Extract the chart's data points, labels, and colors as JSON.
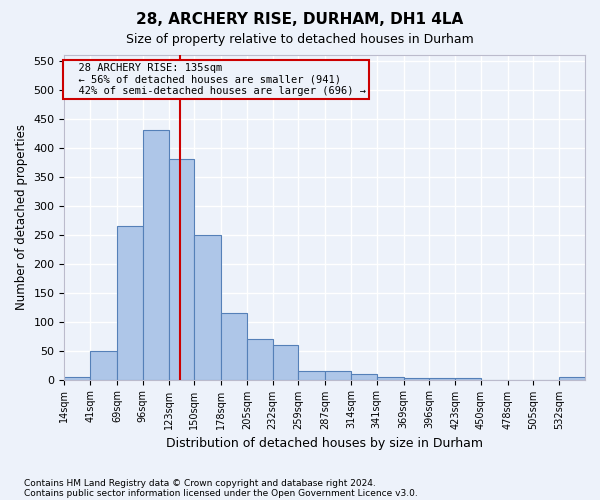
{
  "title_line1": "28, ARCHERY RISE, DURHAM, DH1 4LA",
  "title_line2": "Size of property relative to detached houses in Durham",
  "xlabel": "Distribution of detached houses by size in Durham",
  "ylabel": "Number of detached properties",
  "footnote1": "Contains HM Land Registry data © Crown copyright and database right 2024.",
  "footnote2": "Contains public sector information licensed under the Open Government Licence v3.0.",
  "annotation_line1": "28 ARCHERY RISE: 135sqm",
  "annotation_line2": "← 56% of detached houses are smaller (941)",
  "annotation_line3": "42% of semi-detached houses are larger (696) →",
  "bar_edges": [
    14,
    41,
    69,
    96,
    123,
    150,
    178,
    205,
    232,
    259,
    287,
    314,
    341,
    369,
    396,
    423,
    450,
    478,
    505,
    532,
    559
  ],
  "bar_heights": [
    5,
    50,
    265,
    430,
    380,
    250,
    115,
    70,
    60,
    15,
    15,
    10,
    5,
    3,
    3,
    3,
    0,
    0,
    0,
    5
  ],
  "bar_color": "#aec6e8",
  "bar_edge_color": "#5580b8",
  "vline_color": "#cc0000",
  "vline_x": 135,
  "annotation_box_color": "#cc0000",
  "ylim": [
    0,
    560
  ],
  "yticks": [
    0,
    50,
    100,
    150,
    200,
    250,
    300,
    350,
    400,
    450,
    500,
    550
  ],
  "bg_color": "#edf2fa",
  "grid_color": "#ffffff"
}
